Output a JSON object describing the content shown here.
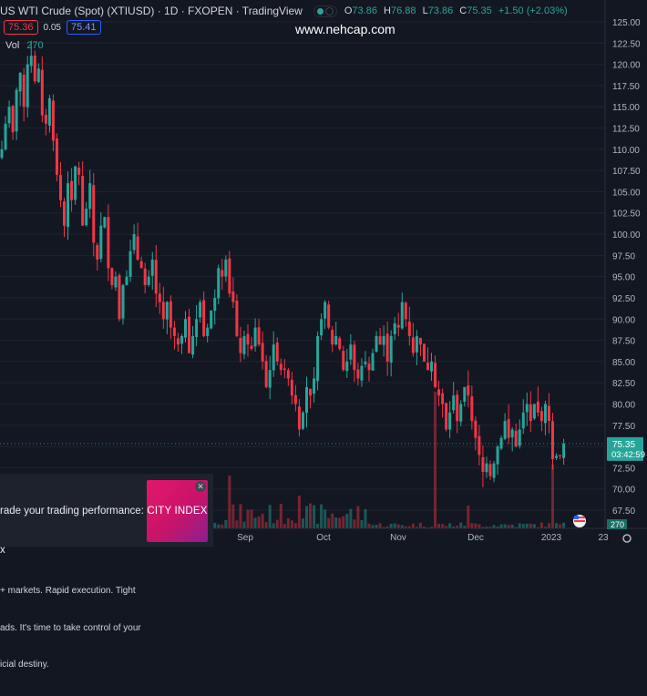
{
  "header": {
    "title": "US WTI Crude (Spot) (XTIUSD) · 1D · FXOPEN · TradingView",
    "ohlc": [
      {
        "key": "O",
        "value": "73.86"
      },
      {
        "key": "H",
        "value": "76.88"
      },
      {
        "key": "L",
        "value": "73.86"
      },
      {
        "key": "C",
        "value": "75.35"
      }
    ],
    "change": "+1.50 (+2.03%)"
  },
  "quote": {
    "bid": "75.36",
    "spread": "0.05",
    "ask": "75.41"
  },
  "volume": {
    "label": "Vol",
    "value": "270"
  },
  "watermark": "www.nehcap.com",
  "price_label": {
    "price": "75.35",
    "countdown": "03:42:59"
  },
  "volume_label": "270",
  "ad": {
    "line1": "rade your trading performance: City",
    "line2": "x",
    "line3": "+ markets. Rapid execution. Tight",
    "line4": "ads. It's time to take control of your",
    "line5": "icial destiny.",
    "logo": "CITY INDEX",
    "close": "✕"
  },
  "colors": {
    "bg": "#131722",
    "up": "#26a69a",
    "down": "#f23645",
    "text": "#d1d4dc"
  },
  "chart_data": {
    "type": "candlestick",
    "y_ticks": [
      "125.00",
      "122.50",
      "120.00",
      "117.50",
      "115.00",
      "112.50",
      "110.00",
      "107.50",
      "105.00",
      "102.50",
      "100.00",
      "97.50",
      "95.00",
      "92.50",
      "90.00",
      "87.50",
      "85.00",
      "82.50",
      "80.00",
      "77.50",
      "75.00",
      "72.50",
      "70.00",
      "67.50"
    ],
    "x_ticks": [
      "Sep",
      "Oct",
      "Nov",
      "Dec",
      "2023",
      "23"
    ],
    "ylim": [
      65.5,
      126
    ],
    "candles": [
      {
        "t": 0,
        "c": 110
      },
      {
        "t": 1,
        "c": 113
      },
      {
        "t": 2,
        "c": 115
      },
      {
        "t": 3,
        "c": 112
      },
      {
        "t": 4,
        "c": 117
      },
      {
        "t": 5,
        "c": 119
      },
      {
        "t": 6,
        "c": 115
      },
      {
        "t": 7,
        "c": 120
      },
      {
        "t": 8,
        "c": 121
      },
      {
        "t": 9,
        "c": 118
      },
      {
        "t": 10,
        "c": 119.5
      },
      {
        "t": 11,
        "c": 114
      },
      {
        "t": 12,
        "c": 113
      },
      {
        "t": 13,
        "c": 116
      },
      {
        "t": 14,
        "c": 111
      },
      {
        "t": 15,
        "c": 107
      },
      {
        "t": 16,
        "c": 104
      },
      {
        "t": 17,
        "c": 101
      },
      {
        "t": 18,
        "c": 106
      },
      {
        "t": 19,
        "c": 104
      },
      {
        "t": 20,
        "c": 108
      },
      {
        "t": 21,
        "c": 107
      },
      {
        "t": 22,
        "c": 101
      },
      {
        "t": 23,
        "c": 103
      },
      {
        "t": 24,
        "c": 106
      },
      {
        "t": 25,
        "c": 99
      },
      {
        "t": 26,
        "c": 97
      },
      {
        "t": 27,
        "c": 101
      },
      {
        "t": 28,
        "c": 102
      },
      {
        "t": 29,
        "c": 96
      },
      {
        "t": 30,
        "c": 94
      },
      {
        "t": 31,
        "c": 95
      },
      {
        "t": 32,
        "c": 90
      },
      {
        "t": 33,
        "c": 94
      },
      {
        "t": 34,
        "c": 95
      },
      {
        "t": 35,
        "c": 98
      },
      {
        "t": 36,
        "c": 100
      },
      {
        "t": 37,
        "c": 97
      },
      {
        "t": 38,
        "c": 96
      },
      {
        "t": 39,
        "c": 94
      },
      {
        "t": 40,
        "c": 95
      },
      {
        "t": 41,
        "c": 97
      },
      {
        "t": 42,
        "c": 93
      },
      {
        "t": 43,
        "c": 92
      },
      {
        "t": 44,
        "c": 90
      },
      {
        "t": 45,
        "c": 92
      },
      {
        "t": 46,
        "c": 89
      },
      {
        "t": 47,
        "c": 88
      },
      {
        "t": 48,
        "c": 87
      },
      {
        "t": 49,
        "c": 88
      },
      {
        "t": 50,
        "c": 90
      },
      {
        "t": 51,
        "c": 86
      },
      {
        "t": 52,
        "c": 88
      },
      {
        "t": 53,
        "c": 90
      },
      {
        "t": 54,
        "c": 92
      },
      {
        "t": 55,
        "c": 88
      },
      {
        "t": 56,
        "c": 89
      },
      {
        "t": 57,
        "c": 91
      },
      {
        "t": 58,
        "c": 92.5
      },
      {
        "t": 59,
        "c": 96
      },
      {
        "t": 60,
        "c": 95
      },
      {
        "t": 61,
        "c": 97
      },
      {
        "t": 62,
        "c": 93
      },
      {
        "t": 63,
        "c": 92
      },
      {
        "t": 64,
        "c": 88
      },
      {
        "t": 65,
        "c": 86
      },
      {
        "t": 66,
        "c": 88
      },
      {
        "t": 67,
        "c": 87
      },
      {
        "t": 68,
        "c": 86.5
      },
      {
        "t": 69,
        "c": 89
      },
      {
        "t": 70,
        "c": 87
      },
      {
        "t": 71,
        "c": 85
      },
      {
        "t": 72,
        "c": 82
      },
      {
        "t": 73,
        "c": 84
      },
      {
        "t": 74,
        "c": 87
      },
      {
        "t": 75,
        "c": 85
      },
      {
        "t": 76,
        "c": 84
      },
      {
        "t": 77,
        "c": 84
      },
      {
        "t": 78,
        "c": 83
      },
      {
        "t": 79,
        "c": 81
      },
      {
        "t": 80,
        "c": 80
      },
      {
        "t": 81,
        "c": 77
      },
      {
        "t": 82,
        "c": 79
      },
      {
        "t": 83,
        "c": 82
      },
      {
        "t": 84,
        "c": 81
      },
      {
        "t": 85,
        "c": 83
      },
      {
        "t": 86,
        "c": 88
      },
      {
        "t": 87,
        "c": 90
      },
      {
        "t": 88,
        "c": 92
      },
      {
        "t": 89,
        "c": 89
      },
      {
        "t": 90,
        "c": 87
      },
      {
        "t": 91,
        "c": 88
      },
      {
        "t": 92,
        "c": 86.5
      },
      {
        "t": 93,
        "c": 84
      },
      {
        "t": 94,
        "c": 85
      },
      {
        "t": 95,
        "c": 87
      },
      {
        "t": 96,
        "c": 84
      },
      {
        "t": 97,
        "c": 83
      },
      {
        "t": 98,
        "c": 84.5
      },
      {
        "t": 99,
        "c": 85
      },
      {
        "t": 100,
        "c": 84
      },
      {
        "t": 101,
        "c": 86
      },
      {
        "t": 102,
        "c": 88
      },
      {
        "t": 103,
        "c": 87
      },
      {
        "t": 104,
        "c": 88
      },
      {
        "t": 105,
        "c": 85
      },
      {
        "t": 106,
        "c": 88
      },
      {
        "t": 107,
        "c": 89.5
      },
      {
        "t": 108,
        "c": 89
      },
      {
        "t": 109,
        "c": 92
      },
      {
        "t": 110,
        "c": 90
      },
      {
        "t": 111,
        "c": 88
      },
      {
        "t": 112,
        "c": 86
      },
      {
        "t": 113,
        "c": 88
      },
      {
        "t": 114,
        "c": 87
      },
      {
        "t": 115,
        "c": 85
      },
      {
        "t": 116,
        "c": 84
      },
      {
        "t": 117,
        "c": 85
      },
      {
        "t": 118,
        "c": 82
      },
      {
        "t": 119,
        "c": 81
      },
      {
        "t": 120,
        "c": 80
      },
      {
        "t": 121,
        "c": 77
      },
      {
        "t": 122,
        "c": 79
      },
      {
        "t": 123,
        "c": 81
      },
      {
        "t": 124,
        "c": 78
      },
      {
        "t": 125,
        "c": 80
      },
      {
        "t": 126,
        "c": 82
      },
      {
        "t": 127,
        "c": 81
      },
      {
        "t": 128,
        "c": 78
      },
      {
        "t": 129,
        "c": 76
      },
      {
        "t": 130,
        "c": 74
      },
      {
        "t": 131,
        "c": 72
      },
      {
        "t": 132,
        "c": 73
      },
      {
        "t": 133,
        "c": 71.5
      },
      {
        "t": 134,
        "c": 73
      },
      {
        "t": 135,
        "c": 75
      },
      {
        "t": 136,
        "c": 76
      },
      {
        "t": 137,
        "c": 78
      },
      {
        "t": 138,
        "c": 76
      },
      {
        "t": 139,
        "c": 77
      },
      {
        "t": 140,
        "c": 75
      },
      {
        "t": 141,
        "c": 77
      },
      {
        "t": 142,
        "c": 79
      },
      {
        "t": 143,
        "c": 80
      },
      {
        "t": 144,
        "c": 78
      },
      {
        "t": 145,
        "c": 80
      },
      {
        "t": 146,
        "c": 79
      },
      {
        "t": 147,
        "c": 78
      },
      {
        "t": 148,
        "c": 80
      },
      {
        "t": 149,
        "c": 78
      },
      {
        "t": 150,
        "c": 73.5
      },
      {
        "t": 151,
        "c": 73.9
      },
      {
        "t": 152,
        "c": 73.86
      },
      {
        "t": 153,
        "c": 75.35
      }
    ],
    "volume_ticks_note": "",
    "last_price": 75.35
  }
}
